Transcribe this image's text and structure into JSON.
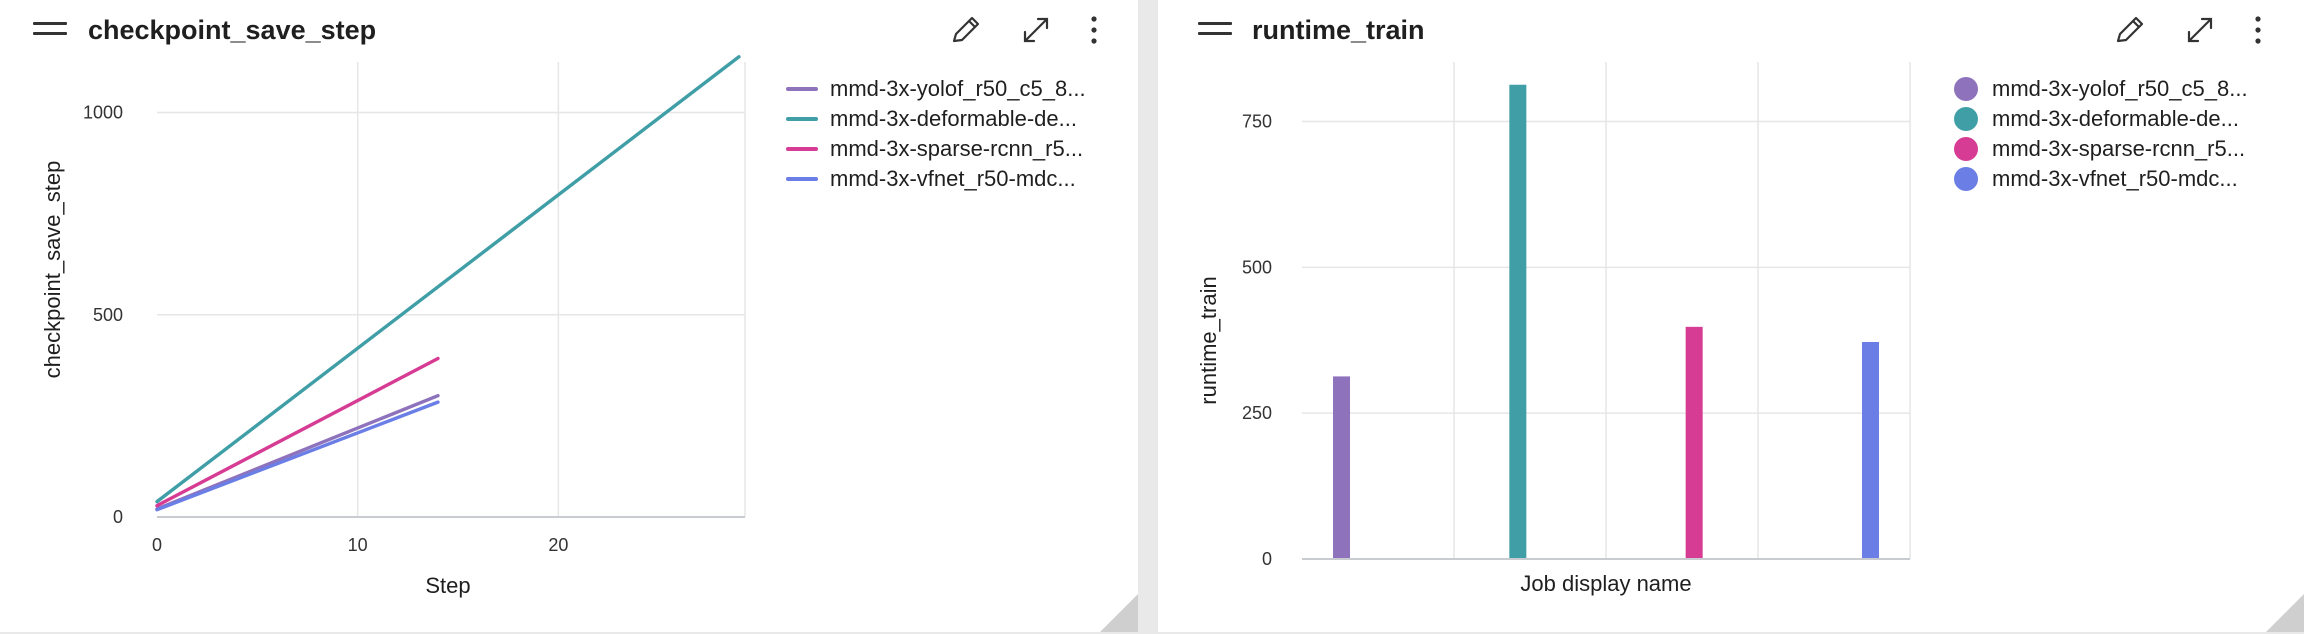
{
  "left_panel": {
    "title": "checkpoint_save_step",
    "icons": [
      "drag-handle-icon",
      "pencil-icon",
      "expand-icon",
      "more-vertical-icon"
    ]
  },
  "right_panel": {
    "title": "runtime_train",
    "icons": [
      "drag-handle-icon",
      "pencil-icon",
      "expand-icon",
      "more-vertical-icon"
    ]
  },
  "chart_data": [
    {
      "type": "line",
      "xlabel": "Step",
      "ylabel": "checkpoint_save_step",
      "xlim": [
        0,
        29.3
      ],
      "ylim": [
        0,
        1125
      ],
      "xticks": [
        0,
        10,
        20
      ],
      "yticks": [
        0,
        500,
        1000
      ],
      "grid": true,
      "legend_position": "right",
      "series": [
        {
          "name": "mmd-3x-yolof_r50_c5_8...",
          "color": "#8e72bc",
          "x": [
            0,
            14
          ],
          "y": [
            20,
            300
          ]
        },
        {
          "name": "mmd-3x-deformable-de...",
          "color": "#3f9ea6",
          "x": [
            0,
            29
          ],
          "y": [
            38,
            1138
          ]
        },
        {
          "name": "mmd-3x-sparse-rcnn_r5...",
          "color": "#d63c94",
          "x": [
            0,
            14
          ],
          "y": [
            28,
            392
          ]
        },
        {
          "name": "mmd-3x-vfnet_r50-mdc...",
          "color": "#6a7ee6",
          "x": [
            0,
            14
          ],
          "y": [
            18,
            284
          ]
        }
      ]
    },
    {
      "type": "bar",
      "xlabel": "Job display name",
      "ylabel": "runtime_train",
      "ylim": [
        0,
        852
      ],
      "yticks": [
        0,
        250,
        500,
        750
      ],
      "grid": true,
      "legend_position": "right",
      "categories": [
        "mmd-3x-yolof_r50_c5_8...",
        "mmd-3x-deformable-de...",
        "mmd-3x-sparse-rcnn_r5...",
        "mmd-3x-vfnet_r50-mdc..."
      ],
      "values": [
        313,
        813,
        398,
        372
      ],
      "colors": [
        "#8e72bc",
        "#3f9ea6",
        "#d63c94",
        "#6a7ee6"
      ]
    }
  ]
}
